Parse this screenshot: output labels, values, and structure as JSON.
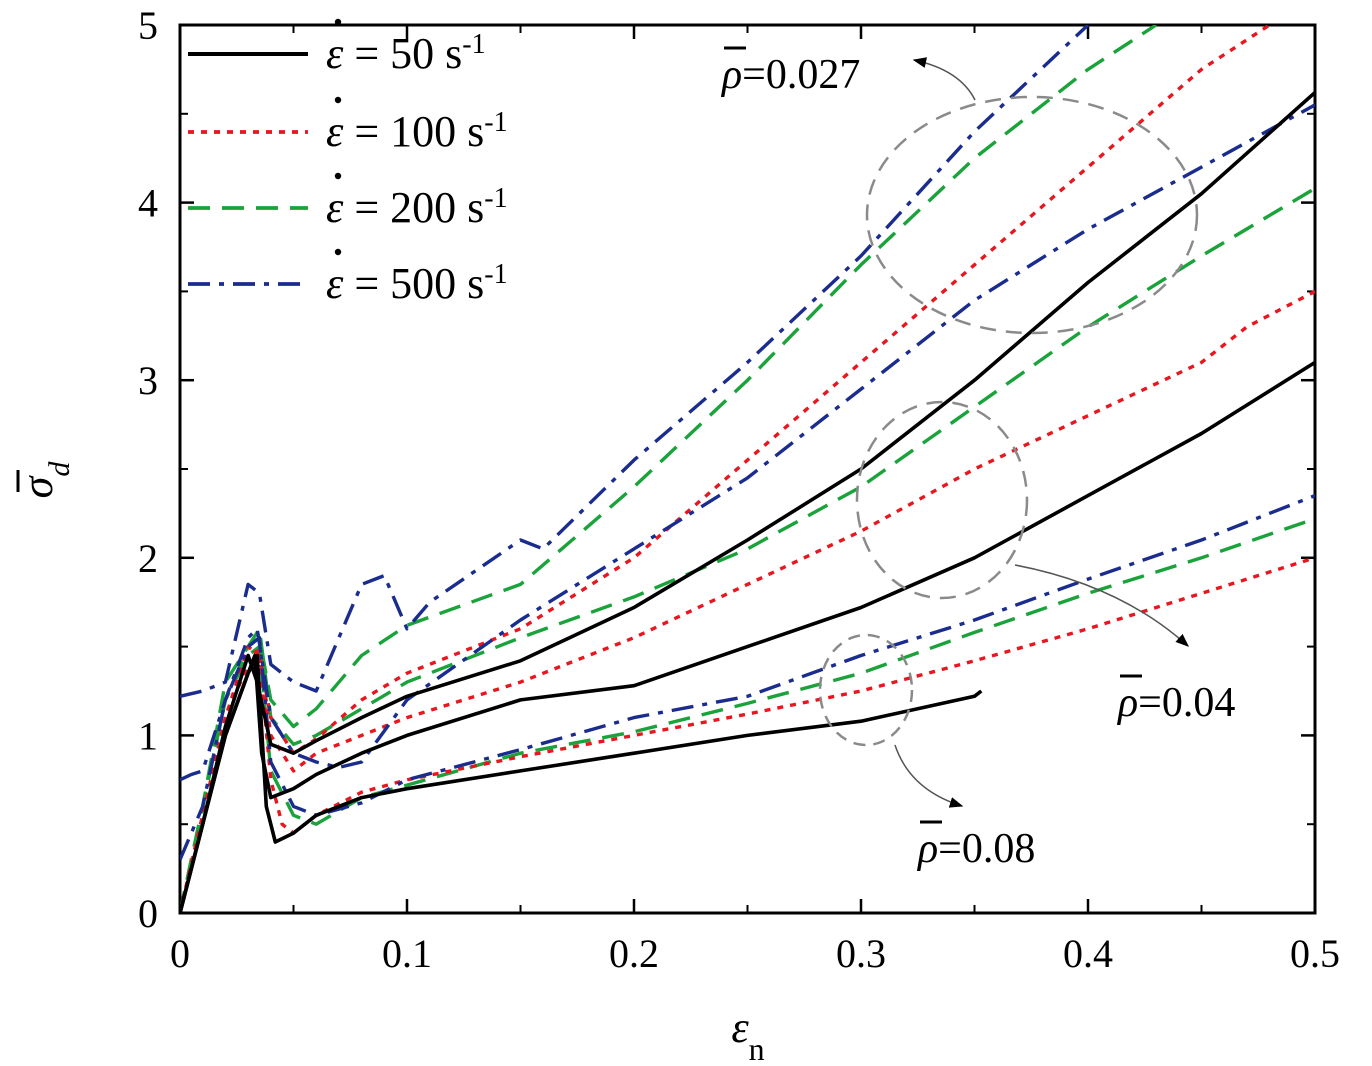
{
  "chart_data": {
    "type": "line",
    "xlabel": "ε",
    "xlabel_sub": "n",
    "ylabel": "σ",
    "ylabel_sub": "d",
    "xlim": [
      0,
      0.5
    ],
    "ylim": [
      0,
      5
    ],
    "xticks": [
      "0",
      "0.1",
      "0.2",
      "0.3",
      "0.4",
      "0.5"
    ],
    "yticks": [
      "0",
      "1",
      "2",
      "3",
      "4",
      "5"
    ],
    "legend_position": "top-left",
    "legend": [
      {
        "prefix": "ε",
        "text": " = 50 s",
        "sup": "-1",
        "color": "#000000",
        "dash": "solid"
      },
      {
        "prefix": "ε",
        "text": " = 100 s",
        "sup": "-1",
        "color": "#e8161e",
        "dash": "dot"
      },
      {
        "prefix": "ε",
        "text": " = 200 s",
        "sup": "-1",
        "color": "#1aa33a",
        "dash": "dash"
      },
      {
        "prefix": "ε",
        "text": " = 500 s",
        "sup": "-1",
        "color": "#1b2c8f",
        "dash": "dashdot"
      }
    ],
    "annotations": [
      {
        "symbol": "ρ",
        "text": "=0.027"
      },
      {
        "symbol": "ρ",
        "text": "=0.04"
      },
      {
        "symbol": "ρ",
        "text": "=0.08"
      }
    ],
    "series": [
      {
        "name": "ρ=0.027, 50 s-1",
        "rate": "50",
        "group": "0.027",
        "x": [
          0,
          0.01,
          0.02,
          0.03,
          0.034,
          0.04,
          0.05,
          0.06,
          0.08,
          0.1,
          0.15,
          0.2,
          0.25,
          0.3,
          0.35,
          0.4,
          0.45,
          0.5
        ],
        "y": [
          0,
          0.5,
          1.05,
          1.45,
          1.3,
          0.95,
          0.9,
          0.97,
          1.1,
          1.22,
          1.42,
          1.72,
          2.1,
          2.5,
          3.0,
          3.55,
          4.05,
          4.62
        ]
      },
      {
        "name": "ρ=0.027, 100 s-1",
        "rate": "100",
        "group": "0.027",
        "x": [
          0,
          0.01,
          0.02,
          0.03,
          0.035,
          0.04,
          0.05,
          0.06,
          0.08,
          0.1,
          0.15,
          0.2,
          0.25,
          0.3,
          0.35,
          0.4,
          0.45,
          0.48
        ],
        "y": [
          0,
          0.55,
          1.1,
          1.5,
          1.45,
          1.1,
          0.9,
          0.98,
          1.2,
          1.35,
          1.6,
          2.0,
          2.55,
          3.1,
          3.65,
          4.2,
          4.75,
          5.0
        ]
      },
      {
        "name": "ρ=0.027, 200 s-1",
        "rate": "200",
        "group": "0.027",
        "x": [
          0,
          0.01,
          0.02,
          0.03,
          0.035,
          0.04,
          0.05,
          0.06,
          0.08,
          0.1,
          0.15,
          0.2,
          0.25,
          0.3,
          0.35,
          0.4,
          0.43
        ],
        "y": [
          0,
          0.6,
          1.3,
          1.5,
          1.55,
          1.2,
          1.05,
          1.15,
          1.45,
          1.62,
          1.85,
          2.4,
          3.0,
          3.65,
          4.25,
          4.75,
          5.0
        ]
      },
      {
        "name": "ρ=0.027, 500 s-1",
        "rate": "500",
        "group": "0.027",
        "x": [
          0,
          0.01,
          0.02,
          0.03,
          0.035,
          0.04,
          0.05,
          0.06,
          0.08,
          0.09,
          0.1,
          0.11,
          0.15,
          0.16,
          0.2,
          0.25,
          0.3,
          0.35,
          0.4
        ],
        "y": [
          1.22,
          1.25,
          1.3,
          1.85,
          1.8,
          1.4,
          1.3,
          1.25,
          1.85,
          1.9,
          1.6,
          1.75,
          2.1,
          2.05,
          2.55,
          3.1,
          3.7,
          4.4,
          5.0
        ]
      },
      {
        "name": "ρ=0.04, 50 s-1",
        "rate": "50",
        "group": "0.04",
        "x": [
          0,
          0.01,
          0.02,
          0.03,
          0.033,
          0.036,
          0.04,
          0.05,
          0.06,
          0.08,
          0.1,
          0.15,
          0.2,
          0.25,
          0.3,
          0.35,
          0.4,
          0.45,
          0.5
        ],
        "y": [
          0,
          0.5,
          1.0,
          1.35,
          1.45,
          0.9,
          0.65,
          0.7,
          0.78,
          0.9,
          1.0,
          1.2,
          1.28,
          1.5,
          1.72,
          2.0,
          2.35,
          2.7,
          3.1
        ]
      },
      {
        "name": "ρ=0.04, 100 s-1",
        "rate": "100",
        "group": "0.04",
        "x": [
          0,
          0.01,
          0.02,
          0.03,
          0.035,
          0.04,
          0.05,
          0.06,
          0.08,
          0.1,
          0.15,
          0.2,
          0.25,
          0.3,
          0.35,
          0.4,
          0.45,
          0.47,
          0.5
        ],
        "y": [
          0,
          0.55,
          1.1,
          1.45,
          1.48,
          1.0,
          0.8,
          0.9,
          1.0,
          1.1,
          1.3,
          1.55,
          1.85,
          2.15,
          2.5,
          2.8,
          3.1,
          3.3,
          3.5
        ]
      },
      {
        "name": "ρ=0.04, 200 s-1",
        "rate": "200",
        "group": "0.04",
        "x": [
          0,
          0.01,
          0.02,
          0.03,
          0.035,
          0.04,
          0.05,
          0.06,
          0.08,
          0.1,
          0.15,
          0.2,
          0.25,
          0.3,
          0.35,
          0.4,
          0.45,
          0.5
        ],
        "y": [
          0,
          0.6,
          1.2,
          1.5,
          1.6,
          1.1,
          0.95,
          1.0,
          1.15,
          1.3,
          1.55,
          1.78,
          2.05,
          2.4,
          2.85,
          3.3,
          3.7,
          4.08
        ]
      },
      {
        "name": "ρ=0.04, 500 s-1",
        "rate": "500",
        "group": "0.04",
        "x": [
          0,
          0.005,
          0.01,
          0.02,
          0.03,
          0.034,
          0.04,
          0.05,
          0.06,
          0.07,
          0.08,
          0.1,
          0.15,
          0.2,
          0.25,
          0.3,
          0.35,
          0.4,
          0.45,
          0.5
        ],
        "y": [
          0.75,
          0.78,
          0.8,
          1.2,
          1.55,
          1.6,
          1.1,
          0.9,
          0.85,
          0.82,
          0.85,
          1.2,
          1.65,
          2.05,
          2.45,
          2.95,
          3.45,
          3.85,
          4.2,
          4.55
        ]
      },
      {
        "name": "ρ=0.08, 50 s-1",
        "rate": "50",
        "group": "0.08",
        "x": [
          0,
          0.01,
          0.02,
          0.03,
          0.034,
          0.038,
          0.042,
          0.05,
          0.06,
          0.08,
          0.1,
          0.15,
          0.2,
          0.25,
          0.3,
          0.35,
          0.353
        ],
        "y": [
          0,
          0.5,
          1.0,
          1.35,
          1.45,
          0.6,
          0.4,
          0.45,
          0.55,
          0.65,
          0.7,
          0.8,
          0.9,
          1.0,
          1.08,
          1.22,
          1.25
        ]
      },
      {
        "name": "ρ=0.08, 100 s-1",
        "rate": "100",
        "group": "0.08",
        "x": [
          0,
          0.01,
          0.02,
          0.03,
          0.035,
          0.04,
          0.045,
          0.05,
          0.06,
          0.08,
          0.1,
          0.15,
          0.2,
          0.25,
          0.3,
          0.35,
          0.4,
          0.45,
          0.5
        ],
        "y": [
          0,
          0.55,
          1.1,
          1.4,
          1.45,
          0.75,
          0.5,
          0.45,
          0.55,
          0.68,
          0.75,
          0.88,
          1.0,
          1.12,
          1.25,
          1.42,
          1.6,
          1.8,
          2.0
        ]
      },
      {
        "name": "ρ=0.08, 200 s-1",
        "rate": "200",
        "group": "0.08",
        "x": [
          0,
          0.01,
          0.02,
          0.03,
          0.035,
          0.04,
          0.05,
          0.06,
          0.08,
          0.1,
          0.15,
          0.2,
          0.25,
          0.3,
          0.35,
          0.4,
          0.45,
          0.5
        ],
        "y": [
          0,
          0.6,
          1.2,
          1.45,
          1.5,
          0.8,
          0.55,
          0.5,
          0.65,
          0.72,
          0.9,
          1.02,
          1.18,
          1.35,
          1.58,
          1.8,
          2.0,
          2.22
        ]
      },
      {
        "name": "ρ=0.08, 500 s-1",
        "rate": "500",
        "group": "0.08",
        "x": [
          0,
          0.01,
          0.02,
          0.03,
          0.035,
          0.04,
          0.05,
          0.06,
          0.08,
          0.1,
          0.15,
          0.2,
          0.25,
          0.3,
          0.35,
          0.4,
          0.45,
          0.5
        ],
        "y": [
          0.3,
          0.6,
          1.2,
          1.5,
          1.55,
          0.85,
          0.6,
          0.55,
          0.62,
          0.75,
          0.92,
          1.1,
          1.22,
          1.45,
          1.65,
          1.88,
          2.1,
          2.35
        ]
      }
    ]
  }
}
